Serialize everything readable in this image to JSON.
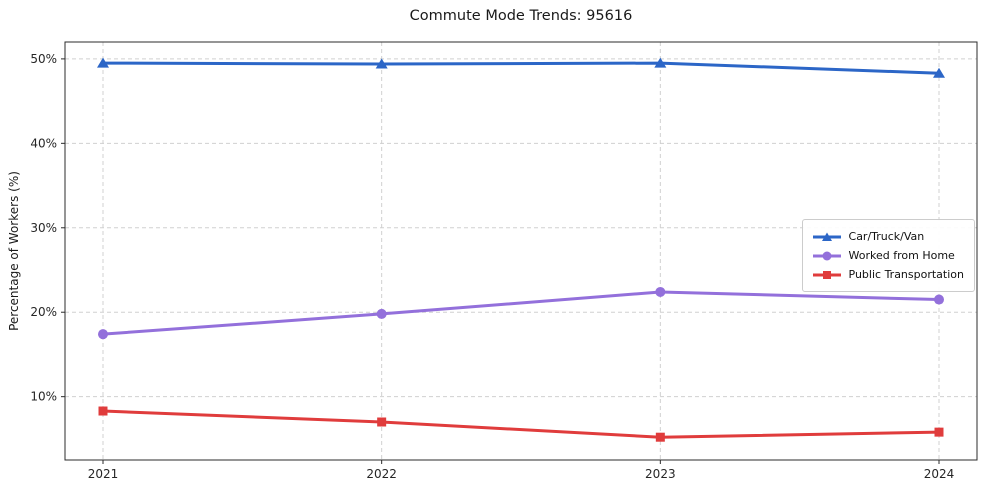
{
  "chart_data": {
    "type": "line",
    "title": "Commute Mode Trends: 95616",
    "xlabel": "",
    "ylabel": "Percentage of Workers (%)",
    "x": [
      2021,
      2022,
      2023,
      2024
    ],
    "x_tick_labels": [
      "2021",
      "2022",
      "2023",
      "2024"
    ],
    "y_ticks": [
      10,
      20,
      30,
      40,
      50
    ],
    "y_tick_labels": [
      "10%",
      "20%",
      "30%",
      "40%",
      "50%"
    ],
    "ylim": [
      2.5,
      52
    ],
    "grid": true,
    "grid_style": "dashed",
    "legend_position": "center right",
    "series": [
      {
        "name": "Car/Truck/Van",
        "marker": "triangle",
        "color": "#2c66c7",
        "values": [
          49.5,
          49.4,
          49.5,
          48.3
        ]
      },
      {
        "name": "Worked from Home",
        "marker": "circle",
        "color": "#9370db",
        "values": [
          17.4,
          19.8,
          22.4,
          21.5
        ]
      },
      {
        "name": "Public Transportation",
        "marker": "square",
        "color": "#e03c3c",
        "values": [
          8.3,
          7.0,
          5.2,
          5.8
        ]
      }
    ],
    "colors": {
      "grid": "#d0d0d0",
      "axis": "#2b2b2b",
      "text": "#1a1a1a",
      "background": "#ffffff"
    }
  }
}
